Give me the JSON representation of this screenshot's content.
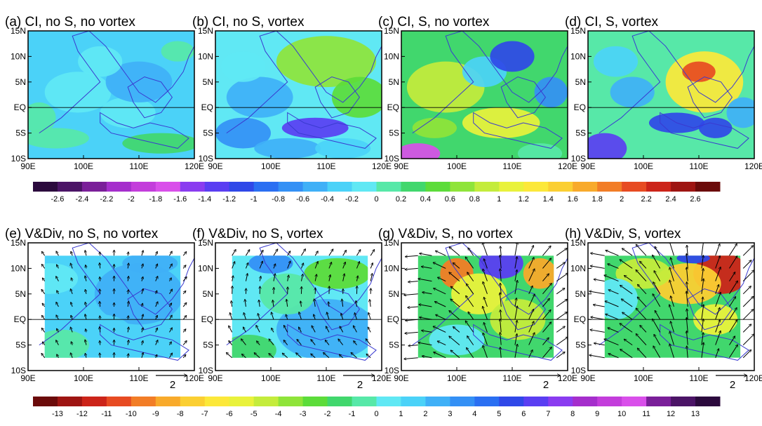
{
  "chart_data": [
    {
      "type": "heatmap",
      "panel": "a",
      "title": "(a)  CI, no S, no vortex",
      "xticks": [
        "90E",
        "100E",
        "110E",
        "120E"
      ],
      "yticks": [
        "15N",
        "10N",
        "5N",
        "EQ",
        "5S",
        "10S"
      ],
      "xlim": [
        90,
        120
      ],
      "ylim": [
        -10,
        15
      ],
      "grid": false
    },
    {
      "type": "heatmap",
      "panel": "b",
      "title": "(b)  CI, no S, vortex",
      "xticks": [
        "90E",
        "100E",
        "110E",
        "120E"
      ],
      "yticks": [
        "15N",
        "10N",
        "5N",
        "EQ",
        "5S",
        "10S"
      ],
      "xlim": [
        90,
        120
      ],
      "ylim": [
        -10,
        15
      ],
      "grid": false
    },
    {
      "type": "heatmap",
      "panel": "c",
      "title": "(c)  CI, S, no vortex",
      "xticks": [
        "90E",
        "100E",
        "110E",
        "120E"
      ],
      "yticks": [
        "15N",
        "10N",
        "5N",
        "EQ",
        "5S",
        "10S"
      ],
      "xlim": [
        90,
        120
      ],
      "ylim": [
        -10,
        15
      ],
      "grid": false
    },
    {
      "type": "heatmap",
      "panel": "d",
      "title": "(d)  CI, S, vortex",
      "xticks": [
        "90E",
        "100E",
        "110E",
        "120E"
      ],
      "yticks": [
        "15N",
        "10N",
        "5N",
        "EQ",
        "5S",
        "10S"
      ],
      "xlim": [
        90,
        120
      ],
      "ylim": [
        -10,
        15
      ],
      "grid": false
    },
    {
      "type": "heatmap",
      "panel": "e",
      "title": "(e)  V&Div, no S, no vortex",
      "xticks": [
        "90E",
        "100E",
        "110E",
        "120E"
      ],
      "yticks": [
        "15N",
        "10N",
        "5N",
        "EQ",
        "5S",
        "10S"
      ],
      "xlim": [
        90,
        120
      ],
      "ylim": [
        -10,
        15
      ],
      "reference_vector": "2"
    },
    {
      "type": "heatmap",
      "panel": "f",
      "title": "(f)  V&Div, no S, vortex",
      "xticks": [
        "90E",
        "100E",
        "110E",
        "120E"
      ],
      "yticks": [
        "15N",
        "10N",
        "5N",
        "EQ",
        "5S",
        "10S"
      ],
      "xlim": [
        90,
        120
      ],
      "ylim": [
        -10,
        15
      ],
      "reference_vector": "2"
    },
    {
      "type": "heatmap",
      "panel": "g",
      "title": "(g)  V&Div, S, no vortex",
      "xticks": [
        "90E",
        "100E",
        "110E",
        "120E"
      ],
      "yticks": [
        "15N",
        "10N",
        "5N",
        "EQ",
        "5S",
        "10S"
      ],
      "xlim": [
        90,
        120
      ],
      "ylim": [
        -10,
        15
      ],
      "reference_vector": "2"
    },
    {
      "type": "heatmap",
      "panel": "h",
      "title": "(h)  V&Div, S, vortex",
      "xticks": [
        "90E",
        "100E",
        "110E",
        "120E"
      ],
      "yticks": [
        "15N",
        "10N",
        "5N",
        "EQ",
        "5S",
        "10S"
      ],
      "xlim": [
        90,
        120
      ],
      "ylim": [
        -10,
        15
      ],
      "reference_vector": "2"
    }
  ],
  "colorbar_top": {
    "labels": [
      "-2.6",
      "-2.4",
      "-2.2",
      "-2",
      "-1.8",
      "-1.6",
      "-1.4",
      "-1.2",
      "-1",
      "-0.8",
      "-0.6",
      "-0.4",
      "-0.2",
      "0",
      "0.2",
      "0.4",
      "0.6",
      "0.8",
      "1",
      "1.2",
      "1.4",
      "1.6",
      "1.8",
      "2",
      "2.2",
      "2.4",
      "2.6"
    ],
    "colors": [
      "#2b0a3d",
      "#4b1466",
      "#7a1f99",
      "#a52ecc",
      "#c33ddb",
      "#d94fea",
      "#8a3cf0",
      "#5a3ef2",
      "#2f48e8",
      "#2a6ff2",
      "#3490f5",
      "#3fb0f7",
      "#4bd2f8",
      "#60e8f4",
      "#57e8a8",
      "#41d76d",
      "#5cdc3a",
      "#8fe43a",
      "#c4ec3c",
      "#e9f23c",
      "#fce83a",
      "#fbcf33",
      "#f8aa2b",
      "#f27d26",
      "#e74b22",
      "#cc2419",
      "#9e1512",
      "#6b0b0a"
    ]
  },
  "colorbar_bottom": {
    "labels": [
      "-13",
      "-12",
      "-11",
      "-10",
      "-9",
      "-8",
      "-7",
      "-6",
      "-5",
      "-4",
      "-3",
      "-2",
      "-1",
      "0",
      "1",
      "2",
      "3",
      "4",
      "5",
      "6",
      "7",
      "8",
      "9",
      "10",
      "11",
      "12",
      "13"
    ],
    "colors": [
      "#6b0b0a",
      "#9e1512",
      "#cc2419",
      "#e74b22",
      "#f27d26",
      "#f8aa2b",
      "#fbcf33",
      "#fce83a",
      "#e9f23c",
      "#c4ec3c",
      "#8fe43a",
      "#5cdc3a",
      "#41d76d",
      "#57e8a8",
      "#60e8f4",
      "#4bd2f8",
      "#3fb0f7",
      "#3490f5",
      "#2a6ff2",
      "#2f48e8",
      "#5a3ef2",
      "#8a3cf0",
      "#a52ecc",
      "#c33ddb",
      "#d94fea",
      "#7a1f99",
      "#4b1466",
      "#2b0a3d"
    ]
  }
}
